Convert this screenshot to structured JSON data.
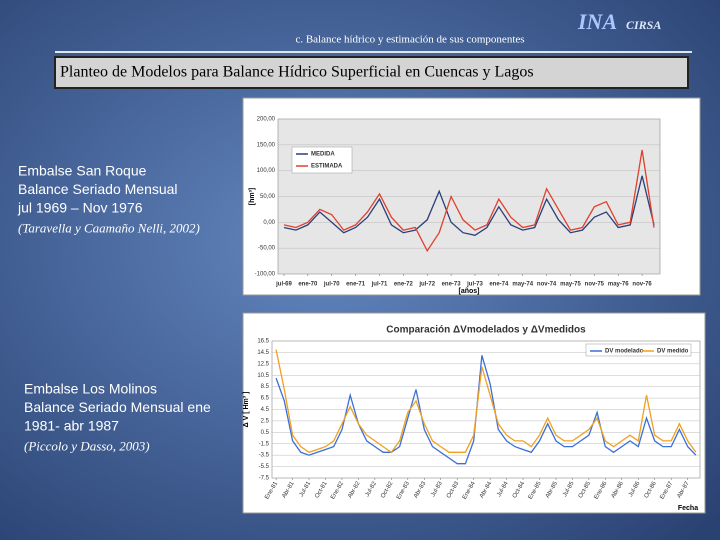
{
  "header": {
    "section": "c.   Balance hídrico y estimación de sus componentes",
    "logo": "INA",
    "logo_sub": "CIRSA"
  },
  "title": "Planteo de Modelos para Balance Hídrico Superficial en Cuencas y Lagos",
  "captions": [
    {
      "lines": [
        "Embalse  San Roque",
        "Balance Seriado Mensual",
        " jul 1969 – Nov  1976"
      ],
      "citation": "(Taravella y Caamaño Nelli, 2002)"
    },
    {
      "lines": [
        "Embalse Los Molinos",
        "Balance Seriado Mensual ene",
        "1981- abr 1987"
      ],
      "citation": " (Piccolo y Dasso, 2003)"
    }
  ],
  "chart_data": [
    {
      "type": "line",
      "y_label": "[hm³]",
      "x_label": "[años]",
      "legend": "upper left",
      "grid": true,
      "categories": [
        "jul-69",
        null,
        "ene-70",
        null,
        "jul-70",
        null,
        "ene-71",
        null,
        "jul-71",
        null,
        "ene-72",
        null,
        "jul-72",
        null,
        "ene-73",
        null,
        "jul-73",
        null,
        "ene-74",
        null,
        "may-74",
        null,
        "nov-74",
        null,
        "may-75",
        null,
        "nov-75",
        null,
        "may-76",
        null,
        "nov-76",
        null
      ],
      "ylim": [
        -100,
        200
      ],
      "yticks": [
        {
          "value": -100,
          "label": "-100,00"
        },
        {
          "value": -50,
          "label": "-50,00"
        },
        {
          "value": 0,
          "label": "0,00"
        },
        {
          "value": 50,
          "label": "50,00"
        },
        {
          "value": 100,
          "label": "100,00"
        },
        {
          "value": 150,
          "label": "150,00"
        },
        {
          "value": 200,
          "label": "200,00"
        }
      ],
      "series": [
        {
          "name": "MEDIDA",
          "color": "#2b3f7a",
          "values": [
            -10,
            -15,
            -5,
            20,
            0,
            -20,
            -10,
            10,
            45,
            -5,
            -20,
            -15,
            5,
            60,
            0,
            -20,
            -25,
            -10,
            30,
            -5,
            -15,
            -10,
            45,
            5,
            -20,
            -15,
            10,
            20,
            -10,
            -5,
            90,
            -5
          ]
        },
        {
          "name": "ESTIMADA",
          "color": "#e0402e",
          "values": [
            -5,
            -10,
            0,
            25,
            15,
            -15,
            -5,
            20,
            55,
            10,
            -15,
            -10,
            -55,
            -20,
            50,
            5,
            -15,
            -5,
            45,
            10,
            -10,
            -5,
            65,
            25,
            -15,
            -10,
            30,
            40,
            -5,
            0,
            140,
            -10
          ]
        }
      ]
    },
    {
      "type": "line",
      "title": "Comparación ΔVmodelados y ΔVmedidos",
      "y_label": "Δ V [ Hm³ ]",
      "x_label": "Fecha",
      "legend": "upper right",
      "grid": true,
      "categories": [
        "Ene-81",
        null,
        "Abr-81",
        null,
        "Jul-81",
        null,
        "Oct-81",
        null,
        "Ene-82",
        null,
        "Abr-82",
        null,
        "Jul-82",
        null,
        "Oct-82",
        null,
        "Ene-83",
        null,
        "Abr-83",
        null,
        "Jul-83",
        null,
        "Oct-83",
        null,
        "Ene-84",
        null,
        "Abr-84",
        null,
        "Jul-84",
        null,
        "Oct-84",
        null,
        "Ene-85",
        null,
        "Abr-85",
        null,
        "Jul-85",
        null,
        "Oct-85",
        null,
        "Ene-86",
        null,
        "Abr-86",
        null,
        "Jul-86",
        null,
        "Oct-86",
        null,
        "Ene-87",
        null,
        "Abr-87",
        null
      ],
      "ylim": [
        -7.5,
        16.5
      ],
      "yticks": [
        -7.5,
        -5.5,
        -3.5,
        -1.5,
        0.5,
        2.5,
        4.5,
        6.5,
        8.5,
        10.5,
        12.5,
        14.5,
        16.5
      ],
      "series": [
        {
          "name": "DV modelado",
          "color": "#3a6fd8",
          "values": [
            10,
            6,
            -1,
            -3,
            -3.5,
            -3,
            -2.5,
            -2,
            1,
            7,
            2,
            -1,
            -2,
            -3,
            -3,
            -2,
            3,
            8,
            1,
            -2,
            -3,
            -4,
            -5,
            -5,
            -1,
            14,
            9,
            1,
            -1,
            -2,
            -2.5,
            -3,
            -1,
            2,
            -1,
            -2,
            -2,
            -1,
            0,
            4,
            -2,
            -3,
            -2,
            -1,
            -2,
            3,
            -1,
            -2,
            -2,
            1,
            -2,
            -3.5
          ]
        },
        {
          "name": "DV medido",
          "color": "#f0a020",
          "values": [
            15,
            8,
            0,
            -2,
            -3,
            -2.5,
            -2,
            -1,
            2,
            5,
            2,
            0,
            -1,
            -2,
            -3,
            -1,
            4,
            6,
            2,
            -1,
            -2,
            -3,
            -3,
            -3,
            0,
            12,
            7,
            2,
            0,
            -1,
            -1,
            -2,
            0,
            3,
            0,
            -1,
            -1,
            0,
            1,
            3,
            -1,
            -2,
            -1,
            0,
            -1,
            7,
            0,
            -1,
            -1,
            2,
            -1,
            -3
          ]
        }
      ]
    }
  ]
}
